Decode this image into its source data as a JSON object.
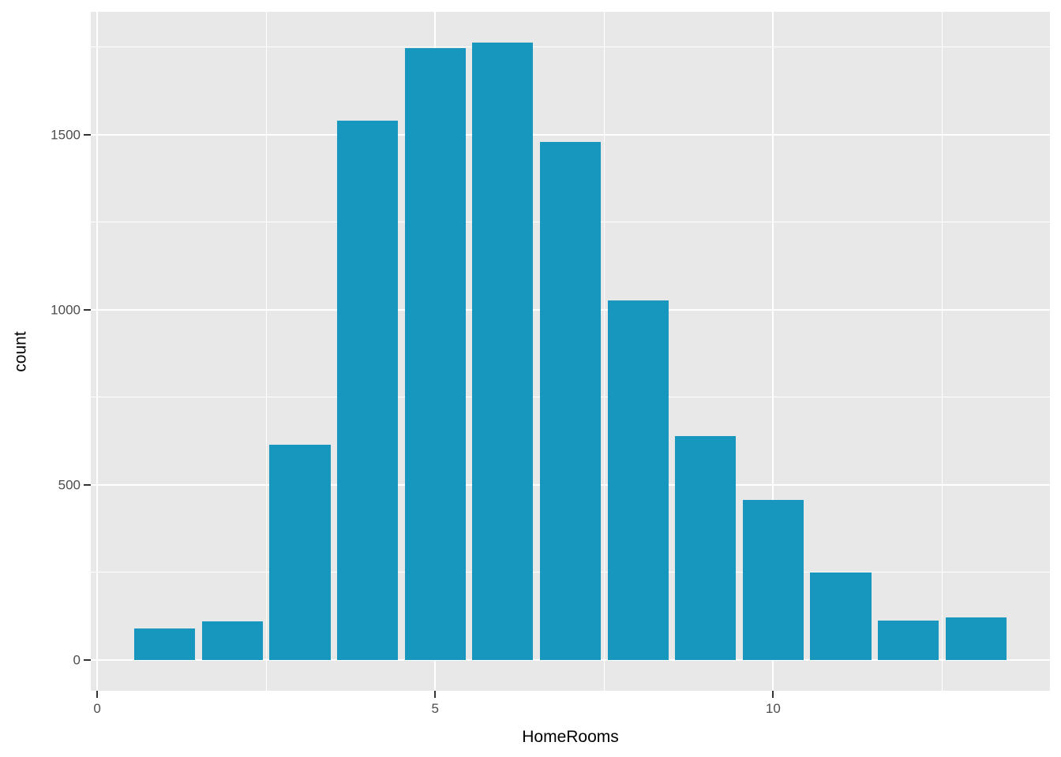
{
  "chart_data": {
    "type": "bar",
    "subtype": "histogram",
    "title": "",
    "xlabel": "HomeRooms",
    "ylabel": "count",
    "categories": [
      1,
      2,
      3,
      4,
      5,
      6,
      7,
      8,
      9,
      10,
      11,
      12,
      13
    ],
    "values": [
      90,
      110,
      615,
      1540,
      1748,
      1763,
      1479,
      1027,
      640,
      458,
      250,
      112,
      122
    ],
    "bar_width": 0.9,
    "x_ticks": [
      {
        "value": 0,
        "label": "0"
      },
      {
        "value": 5,
        "label": "5"
      },
      {
        "value": 10,
        "label": "10"
      }
    ],
    "x_minor_ticks": [
      2.5,
      7.5,
      12.5
    ],
    "y_ticks": [
      {
        "value": 0,
        "label": "0"
      },
      {
        "value": 500,
        "label": "500"
      },
      {
        "value": 1000,
        "label": "1000"
      },
      {
        "value": 1500,
        "label": "1500"
      }
    ],
    "y_minor_ticks": [
      250,
      750,
      1250,
      1750
    ],
    "x_domain": [
      -0.095,
      14.095
    ],
    "y_domain": [
      -88,
      1851
    ],
    "grid": true,
    "legend": "none",
    "colors": {
      "bar_fill": "#1796BE",
      "panel_background": "#E8E8E8",
      "gridline": "#FFFFFF",
      "tick_label": "#4D4D4D",
      "axis_title": "#000000",
      "tick_mark": "#333333",
      "figure_background": "#FFFFFF"
    }
  }
}
